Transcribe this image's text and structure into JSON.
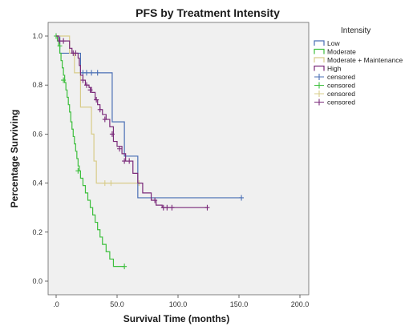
{
  "chart_data": {
    "type": "line",
    "subtype": "kaplan-meier",
    "title": "PFS by Treatment Intensity",
    "xlabel": "Survival Time (months)",
    "ylabel": "Percentage Surviving",
    "xlim": [
      0,
      200
    ],
    "ylim": [
      0,
      1.05
    ],
    "x_ticks": [
      {
        "value": 0,
        "label": ".0"
      },
      {
        "value": 50,
        "label": "50.0"
      },
      {
        "value": 100,
        "label": "100.0"
      },
      {
        "value": 150,
        "label": "150.0"
      },
      {
        "value": 200,
        "label": "200.0"
      }
    ],
    "y_ticks": [
      {
        "value": 0,
        "label": "0.0"
      },
      {
        "value": 0.2,
        "label": "0.2"
      },
      {
        "value": 0.4,
        "label": "0.4"
      },
      {
        "value": 0.6,
        "label": "0.6"
      },
      {
        "value": 0.8,
        "label": "0.8"
      },
      {
        "value": 1.0,
        "label": "1.0"
      }
    ],
    "grid": false,
    "plot_background": "#f0f0f0",
    "legend": {
      "title": "Intensity",
      "placement": "right",
      "entries": [
        {
          "label": "Low",
          "kind": "line",
          "color": "#4a6fb5"
        },
        {
          "label": "Moderate",
          "kind": "line",
          "color": "#3dbf3d"
        },
        {
          "label": "Moderate + Maintenance",
          "kind": "line",
          "color": "#d8cc8a"
        },
        {
          "label": "High",
          "kind": "line",
          "color": "#7a2a7a"
        },
        {
          "label": "censored",
          "kind": "cross",
          "color": "#4a6fb5"
        },
        {
          "label": "censored",
          "kind": "cross",
          "color": "#3dbf3d"
        },
        {
          "label": "censored",
          "kind": "cross",
          "color": "#d8cc8a"
        },
        {
          "label": "censored",
          "kind": "cross",
          "color": "#7a2a7a"
        }
      ]
    },
    "series": [
      {
        "name": "Low",
        "color": "#4a6fb5",
        "steps": [
          [
            0,
            1.0
          ],
          [
            3,
            0.93
          ],
          [
            15,
            0.93
          ],
          [
            20,
            0.85
          ],
          [
            45,
            0.85
          ],
          [
            46,
            0.65
          ],
          [
            55,
            0.65
          ],
          [
            56,
            0.51
          ],
          [
            66,
            0.51
          ],
          [
            67,
            0.34
          ],
          [
            152,
            0.34
          ]
        ],
        "censored": [
          [
            22,
            0.85
          ],
          [
            25,
            0.85
          ],
          [
            29,
            0.85
          ],
          [
            34,
            0.85
          ],
          [
            152,
            0.34
          ]
        ]
      },
      {
        "name": "Moderate",
        "color": "#3dbf3d",
        "steps": [
          [
            0,
            1.0
          ],
          [
            1,
            0.98
          ],
          [
            2,
            0.96
          ],
          [
            3,
            0.93
          ],
          [
            4,
            0.9
          ],
          [
            5,
            0.87
          ],
          [
            6,
            0.84
          ],
          [
            7,
            0.81
          ],
          [
            8,
            0.78
          ],
          [
            9,
            0.75
          ],
          [
            10,
            0.72
          ],
          [
            11,
            0.69
          ],
          [
            12,
            0.65
          ],
          [
            13,
            0.62
          ],
          [
            14,
            0.59
          ],
          [
            15,
            0.56
          ],
          [
            16,
            0.53
          ],
          [
            17,
            0.5
          ],
          [
            18,
            0.47
          ],
          [
            19,
            0.45
          ],
          [
            20,
            0.42
          ],
          [
            22,
            0.39
          ],
          [
            24,
            0.36
          ],
          [
            26,
            0.33
          ],
          [
            28,
            0.3
          ],
          [
            30,
            0.27
          ],
          [
            32,
            0.24
          ],
          [
            34,
            0.21
          ],
          [
            36,
            0.18
          ],
          [
            38,
            0.15
          ],
          [
            41,
            0.12
          ],
          [
            44,
            0.09
          ],
          [
            47,
            0.06
          ],
          [
            56,
            0.06
          ]
        ],
        "censored": [
          [
            0,
            1.0
          ],
          [
            3,
            0.96
          ],
          [
            6,
            0.82
          ],
          [
            18,
            0.45
          ],
          [
            56,
            0.06
          ]
        ]
      },
      {
        "name": "Moderate + Maintenance",
        "color": "#d8cc8a",
        "steps": [
          [
            0,
            1.0
          ],
          [
            10,
            1.0
          ],
          [
            11,
            0.93
          ],
          [
            14,
            0.93
          ],
          [
            15,
            0.85
          ],
          [
            19,
            0.85
          ],
          [
            20,
            0.71
          ],
          [
            28,
            0.71
          ],
          [
            29,
            0.6
          ],
          [
            30,
            0.6
          ],
          [
            31,
            0.49
          ],
          [
            32,
            0.49
          ],
          [
            33,
            0.4
          ],
          [
            68,
            0.4
          ]
        ],
        "censored": [
          [
            40,
            0.4
          ],
          [
            45,
            0.4
          ],
          [
            68,
            0.4
          ]
        ]
      },
      {
        "name": "High",
        "color": "#7a2a7a",
        "steps": [
          [
            0,
            1.0
          ],
          [
            2,
            0.98
          ],
          [
            10,
            0.98
          ],
          [
            11,
            0.95
          ],
          [
            13,
            0.93
          ],
          [
            18,
            0.91
          ],
          [
            19,
            0.88
          ],
          [
            20,
            0.84
          ],
          [
            22,
            0.82
          ],
          [
            24,
            0.8
          ],
          [
            27,
            0.79
          ],
          [
            29,
            0.77
          ],
          [
            32,
            0.74
          ],
          [
            34,
            0.72
          ],
          [
            36,
            0.7
          ],
          [
            38,
            0.68
          ],
          [
            41,
            0.66
          ],
          [
            44,
            0.63
          ],
          [
            47,
            0.57
          ],
          [
            50,
            0.55
          ],
          [
            54,
            0.52
          ],
          [
            57,
            0.49
          ],
          [
            63,
            0.44
          ],
          [
            67,
            0.4
          ],
          [
            71,
            0.36
          ],
          [
            78,
            0.33
          ],
          [
            82,
            0.31
          ],
          [
            87,
            0.3
          ],
          [
            124,
            0.3
          ]
        ],
        "censored": [
          [
            3,
            0.98
          ],
          [
            6,
            0.98
          ],
          [
            14,
            0.93
          ],
          [
            16,
            0.93
          ],
          [
            22,
            0.82
          ],
          [
            25,
            0.8
          ],
          [
            28,
            0.78
          ],
          [
            33,
            0.74
          ],
          [
            36,
            0.7
          ],
          [
            40,
            0.66
          ],
          [
            46,
            0.6
          ],
          [
            52,
            0.54
          ],
          [
            56,
            0.49
          ],
          [
            60,
            0.49
          ],
          [
            81,
            0.33
          ],
          [
            88,
            0.3
          ],
          [
            91,
            0.3
          ],
          [
            95,
            0.3
          ],
          [
            124,
            0.3
          ]
        ]
      }
    ]
  }
}
